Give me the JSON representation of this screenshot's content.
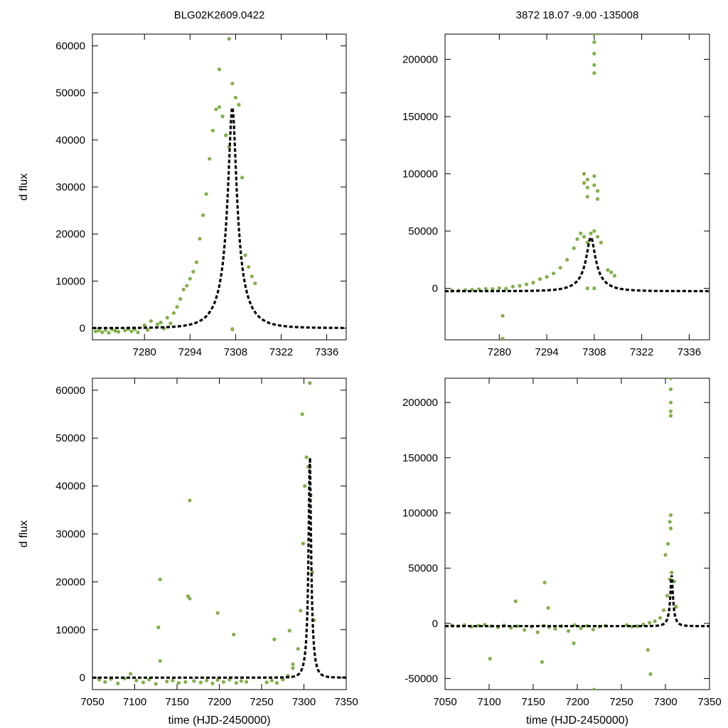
{
  "chart_data": [
    {
      "type": "scatter",
      "title": "BLG02K2609.0422",
      "xlabel": "",
      "ylabel": "d flux",
      "xlim": [
        7264,
        7342
      ],
      "ylim": [
        -2500,
        62500
      ],
      "xticks": [
        7280,
        7294,
        7308,
        7322,
        7336
      ],
      "yticks": [
        0,
        10000,
        20000,
        30000,
        40000,
        50000,
        60000
      ],
      "point_color": "#82b04a",
      "model_color": "#000000",
      "model": {
        "t0": 7307,
        "tE": 7,
        "u0": 0.18,
        "amplitude": 47000,
        "baseline": 0
      },
      "series": [
        {
          "name": "photometry",
          "x": [
            7265,
            7266,
            7267,
            7268,
            7269,
            7270,
            7271,
            7272,
            7274,
            7275,
            7276,
            7277,
            7278,
            7280,
            7281,
            7282,
            7284,
            7285,
            7286,
            7287,
            7288,
            7289,
            7290,
            7291,
            7292,
            7293,
            7294,
            7295,
            7296,
            7297,
            7298,
            7299,
            7300,
            7301,
            7302,
            7303,
            7304,
            7305,
            7306,
            7307,
            7308,
            7309,
            7310,
            7311,
            7312,
            7313,
            7314,
            7303,
            7306,
            7307,
            7307
          ],
          "y": [
            -700,
            -500,
            -900,
            -400,
            -1000,
            -300,
            -600,
            -800,
            -500,
            -200,
            -700,
            -300,
            -900,
            600,
            -400,
            1500,
            800,
            1200,
            -100,
            2200,
            1000,
            3200,
            4500,
            6200,
            8200,
            9000,
            10500,
            12000,
            14000,
            19000,
            24000,
            28500,
            36000,
            42000,
            46500,
            47000,
            45000,
            41000,
            38500,
            52000,
            49000,
            47500,
            32000,
            15500,
            13000,
            11000,
            9500,
            55000,
            61500,
            -200,
            -300
          ]
        }
      ]
    },
    {
      "type": "scatter",
      "title": "3872  18.07  -9.00  -135008",
      "xlabel": "",
      "ylabel": "",
      "xlim": [
        7264,
        7342
      ],
      "ylim": [
        -45000,
        222000
      ],
      "xticks": [
        7280,
        7294,
        7308,
        7322,
        7336
      ],
      "yticks": [
        0,
        50000,
        100000,
        150000,
        200000
      ],
      "point_color": "#82b04a",
      "model_color": "#000000",
      "model": {
        "t0": 7307,
        "tE": 7,
        "u0": 0.18,
        "amplitude": 47000,
        "baseline": -2500
      },
      "series": [
        {
          "name": "photometry",
          "x": [
            7266,
            7268,
            7270,
            7272,
            7274,
            7276,
            7278,
            7280,
            7282,
            7284,
            7286,
            7288,
            7290,
            7292,
            7294,
            7296,
            7298,
            7300,
            7302,
            7303,
            7304,
            7305,
            7306,
            7307,
            7308,
            7309,
            7310,
            7312,
            7313,
            7314,
            7281,
            7281,
            7305,
            7305,
            7306,
            7306,
            7306,
            7305,
            7308,
            7308,
            7309,
            7309,
            7306,
            7308
          ],
          "y": [
            -2000,
            -1800,
            -1500,
            -1200,
            -800,
            -400,
            -600,
            200,
            -300,
            1500,
            2200,
            3500,
            5000,
            8000,
            10000,
            13000,
            18000,
            25000,
            35000,
            43000,
            48000,
            45000,
            40000,
            48000,
            50000,
            45000,
            40000,
            16000,
            14000,
            11000,
            -24000,
            -44000,
            100000,
            92000,
            88000,
            95000,
            80000,
            45000,
            98000,
            90000,
            85000,
            78000,
            0,
            0
          ]
        },
        {
          "name": "bright",
          "x": [
            7308,
            7308,
            7308,
            7308,
            7308
          ],
          "y": [
            222000,
            215000,
            205000,
            195000,
            188000
          ]
        }
      ]
    },
    {
      "type": "scatter",
      "title": "",
      "xlabel": "time (HJD-2450000)",
      "ylabel": "d flux",
      "xlim": [
        7050,
        7350
      ],
      "ylim": [
        -2500,
        62500
      ],
      "xticks": [
        7050,
        7100,
        7150,
        7200,
        7250,
        7300,
        7350
      ],
      "yticks": [
        0,
        10000,
        20000,
        30000,
        40000,
        50000,
        60000
      ],
      "point_color": "#82b04a",
      "model_color": "#000000",
      "model": {
        "t0": 7307,
        "tE": 7,
        "u0": 0.18,
        "amplitude": 47000,
        "baseline": 0
      },
      "series": [
        {
          "name": "photometry",
          "x": [
            7058,
            7065,
            7072,
            7080,
            7088,
            7095,
            7102,
            7110,
            7117,
            7125,
            7130,
            7138,
            7145,
            7152,
            7160,
            7165,
            7170,
            7178,
            7185,
            7192,
            7198,
            7205,
            7212,
            7220,
            7226,
            7232,
            7256,
            7262,
            7268,
            7275,
            7281,
            7287,
            7293,
            7296,
            7299,
            7301,
            7303,
            7305,
            7308,
            7310,
            7312,
            7130,
            7128,
            7165,
            7163,
            7198,
            7217,
            7265,
            7283,
            7287,
            7298,
            7307
          ],
          "y": [
            -400,
            -900,
            -300,
            -1200,
            -200,
            800,
            -600,
            -1000,
            -400,
            -1300,
            3500,
            -800,
            -600,
            -1100,
            -900,
            16500,
            -700,
            -1000,
            -600,
            -1200,
            -500,
            -900,
            -400,
            -1100,
            -700,
            -900,
            -1000,
            -600,
            -1100,
            -400,
            400,
            2000,
            6000,
            14000,
            28000,
            40000,
            46000,
            44000,
            38000,
            22000,
            12000,
            20500,
            10500,
            37000,
            17000,
            13500,
            9000,
            8000,
            9800,
            2800,
            55000,
            61500
          ]
        }
      ]
    },
    {
      "type": "scatter",
      "title": "",
      "xlabel": "time (HJD-2450000)",
      "ylabel": "",
      "xlim": [
        7050,
        7350
      ],
      "ylim": [
        -60000,
        222000
      ],
      "xticks": [
        7050,
        7100,
        7150,
        7200,
        7250,
        7300,
        7350
      ],
      "yticks": [
        -50000,
        0,
        50000,
        100000,
        150000,
        200000
      ],
      "point_color": "#82b04a",
      "model_color": "#000000",
      "model": {
        "t0": 7307,
        "tE": 7,
        "u0": 0.18,
        "amplitude": 47000,
        "baseline": -2500
      },
      "series": [
        {
          "name": "photometry",
          "x": [
            7058,
            7065,
            7072,
            7080,
            7088,
            7095,
            7102,
            7110,
            7117,
            7125,
            7132,
            7140,
            7148,
            7155,
            7162,
            7168,
            7175,
            7182,
            7190,
            7197,
            7204,
            7211,
            7218,
            7225,
            7232,
            7256,
            7262,
            7268,
            7275,
            7282,
            7288,
            7294,
            7298,
            7302,
            7305,
            7307,
            7310,
            7312,
            7101,
            7130,
            7163,
            7167,
            7160,
            7196,
            7219,
            7280,
            7283,
            7300,
            7303,
            7305,
            7306,
            7306
          ],
          "y": [
            -1800,
            -2500,
            -1500,
            -3000,
            -2000,
            -1200,
            -2600,
            -3500,
            -1800,
            -4000,
            -2500,
            -6000,
            -3000,
            -8000,
            -2000,
            -3500,
            -5000,
            -2500,
            -7000,
            -1500,
            -4500,
            -2200,
            -5500,
            -3000,
            -2000,
            -1500,
            -3000,
            -2500,
            -1000,
            500,
            2000,
            5000,
            12000,
            25000,
            40000,
            46000,
            38000,
            15000,
            -32000,
            20000,
            37000,
            14000,
            -35000,
            -18000,
            -60000,
            -24000,
            -46000,
            62000,
            72000,
            92000,
            86000,
            98000
          ]
        },
        {
          "name": "bright",
          "x": [
            7306,
            7306,
            7306,
            7306,
            7306
          ],
          "y": [
            222000,
            212000,
            200000,
            192000,
            188000
          ]
        }
      ]
    }
  ]
}
